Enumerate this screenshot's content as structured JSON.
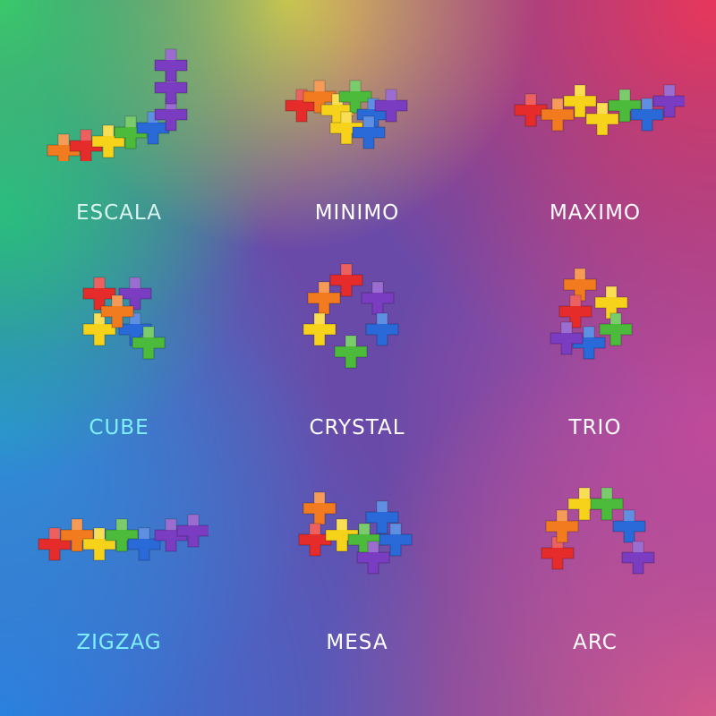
{
  "items": [
    {
      "label": "ESCALA",
      "color": "#d8f4ee"
    },
    {
      "label": "MINIMO",
      "color": "#ffffff"
    },
    {
      "label": "MAXIMO",
      "color": "#ffffff"
    },
    {
      "label": "CUBE",
      "color": "#7ff0ff"
    },
    {
      "label": "CRYSTAL",
      "color": "#ffffff"
    },
    {
      "label": "TRIO",
      "color": "#ffffff"
    },
    {
      "label": "ZIGZAG",
      "color": "#7ff0ff"
    },
    {
      "label": "MESA",
      "color": "#ffffff"
    },
    {
      "label": "ARC",
      "color": "#ffffff"
    }
  ],
  "brick_colors": [
    "#e62b2b",
    "#f27a1f",
    "#f7d21a",
    "#4cba3a",
    "#2a6ad8",
    "#7a3cc0"
  ]
}
